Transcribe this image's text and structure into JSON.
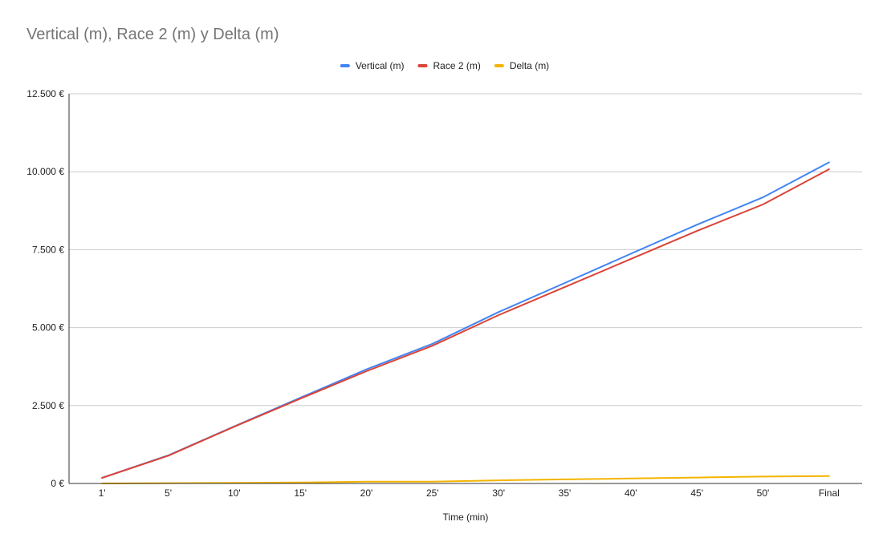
{
  "chart_data": {
    "type": "line",
    "title": "Vertical (m), Race 2 (m) y Delta (m)",
    "xlabel": "Time (min)",
    "ylabel": "",
    "categories": [
      "1'",
      "5'",
      "10'",
      "15'",
      "20'",
      "25'",
      "30'",
      "35'",
      "40'",
      "45'",
      "50'",
      "Final"
    ],
    "ylim": [
      0,
      12500
    ],
    "yticks": [
      0,
      2500,
      5000,
      7500,
      10000,
      12500
    ],
    "ytick_labels": [
      "0 €",
      "2.500 €",
      "5.000 €",
      "7.500 €",
      "10.000 €",
      "12.500 €"
    ],
    "grid": true,
    "legend_position": "top",
    "series": [
      {
        "name": "Vertical (m)",
        "color": "#4285f4",
        "values": [
          180,
          900,
          1830,
          2750,
          3660,
          4480,
          5500,
          6430,
          7370,
          8300,
          9180,
          10300
        ]
      },
      {
        "name": "Race 2 (m)",
        "color": "#db4437",
        "values": [
          180,
          890,
          1820,
          2720,
          3600,
          4420,
          5400,
          6300,
          7200,
          8100,
          8950,
          10080
        ]
      },
      {
        "name": "Delta (m)",
        "color": "#f4b400",
        "values": [
          0,
          10,
          20,
          30,
          60,
          60,
          100,
          130,
          160,
          190,
          220,
          240
        ]
      }
    ]
  }
}
